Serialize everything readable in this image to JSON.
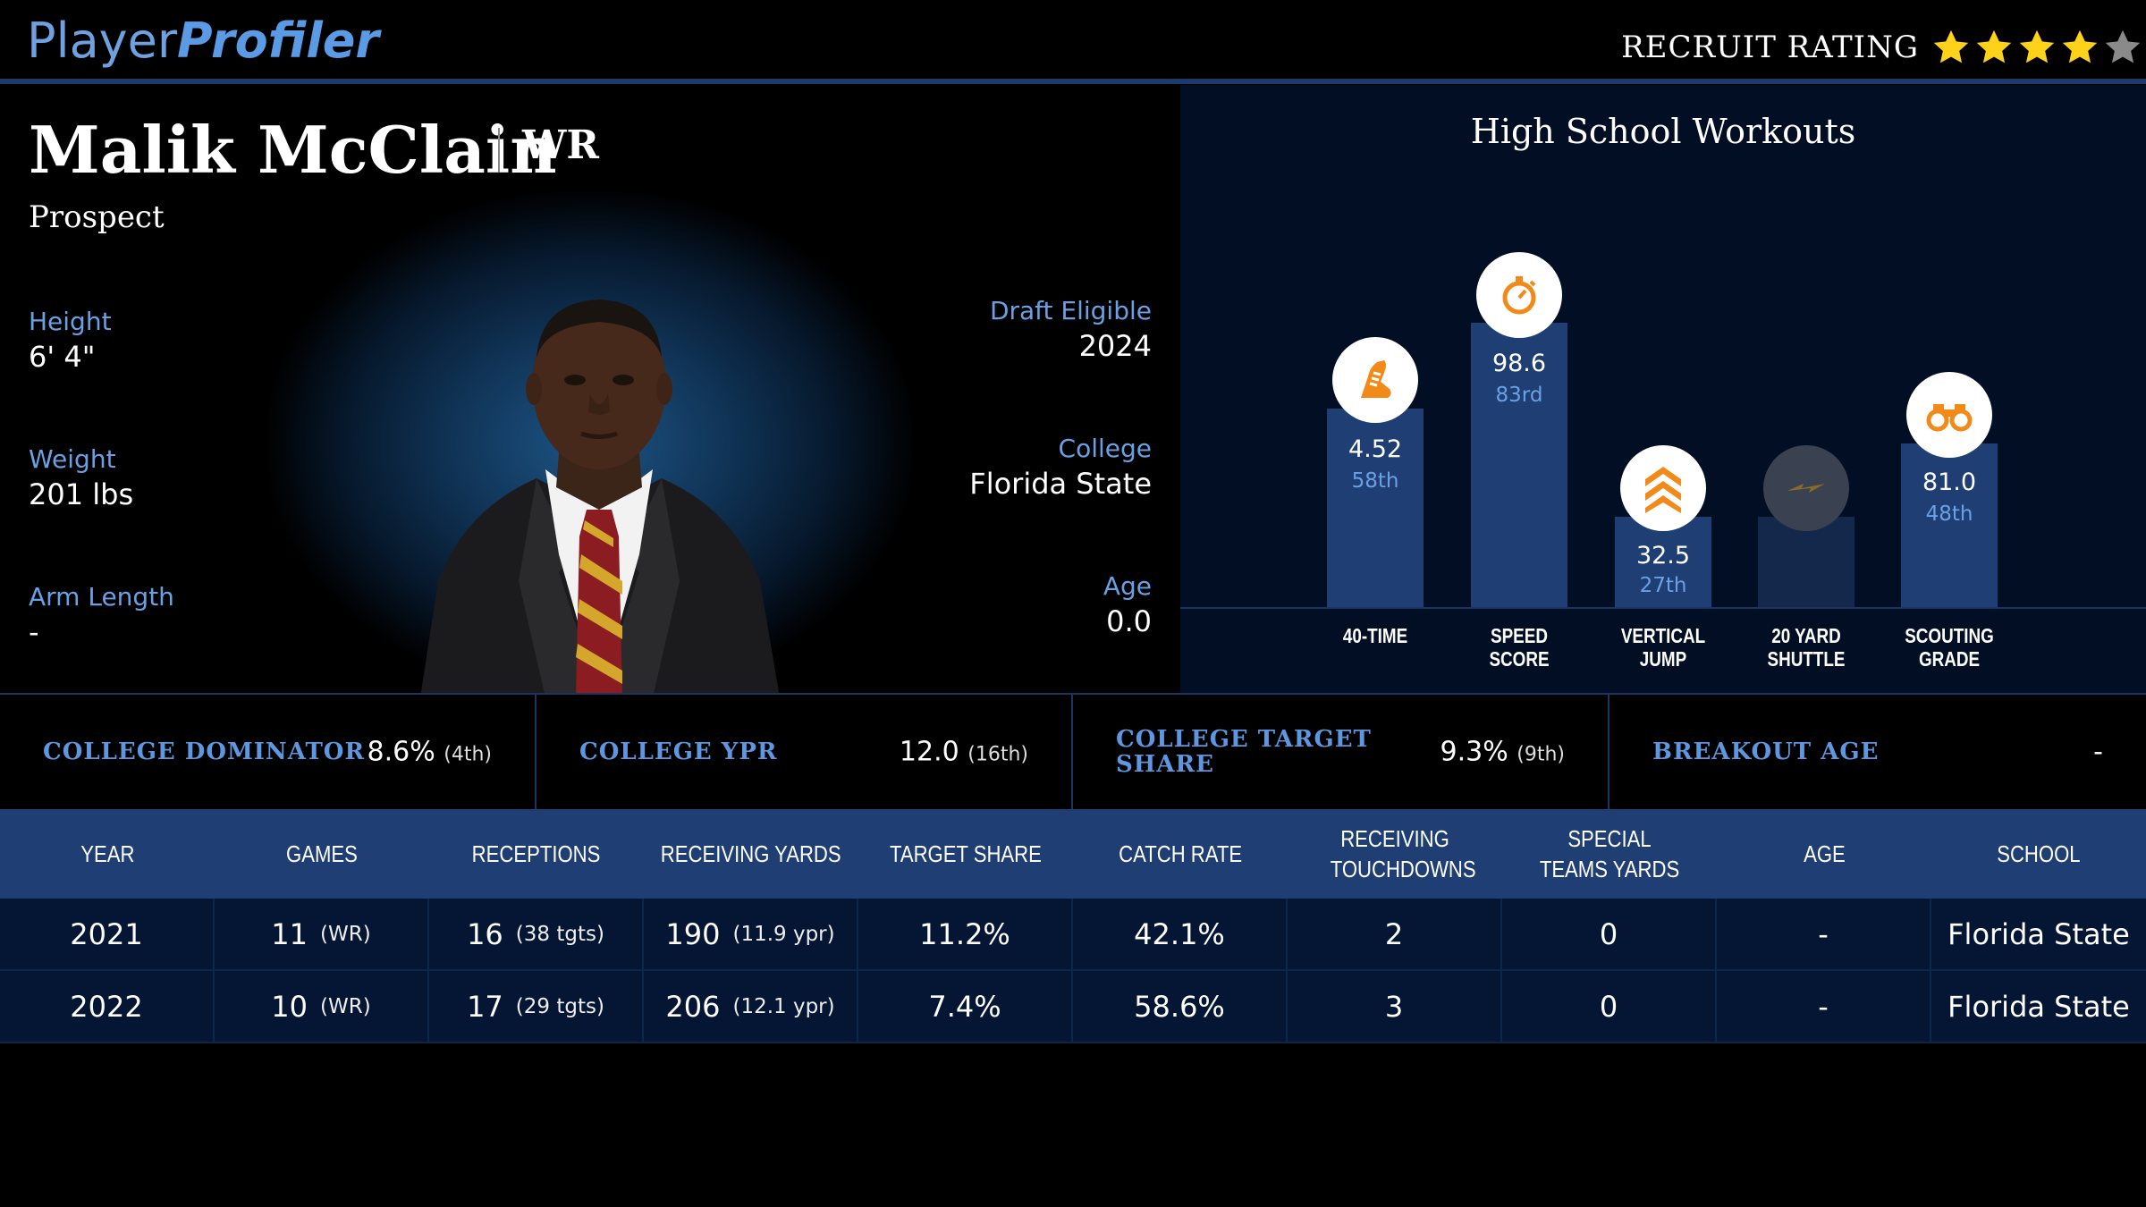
{
  "header": {
    "logo_a": "Player",
    "logo_b": "Profiler",
    "recruit_label": "RECRUIT RATING",
    "recruit_stars": 4,
    "recruit_stars_max": 5
  },
  "profile": {
    "name": "Malik McClain",
    "position": "WR",
    "status": "Prospect",
    "height_label": "Height",
    "height": "6' 4\"",
    "weight_label": "Weight",
    "weight": "201 lbs",
    "arm_label": "Arm Length",
    "arm": "-",
    "draft_label": "Draft Eligible",
    "draft": "2024",
    "college_label": "College",
    "college": "Florida State",
    "age_label": "Age",
    "age": "0.0"
  },
  "workouts": {
    "title": "High School Workouts",
    "items": [
      {
        "value": "4.52",
        "pct": "58th",
        "label1": "40-TIME",
        "label2": "",
        "icon": "shoe-icon",
        "level": 0.58
      },
      {
        "value": "98.6",
        "pct": "83rd",
        "label1": "SPEED",
        "label2": "SCORE",
        "icon": "stopwatch-icon",
        "level": 0.83
      },
      {
        "value": "32.5",
        "pct": "27th",
        "label1": "VERTICAL",
        "label2": "JUMP",
        "icon": "chevrons-up-icon",
        "level": 0.27
      },
      {
        "value": "",
        "pct": "",
        "label1": "20 YARD",
        "label2": "SHUTTLE",
        "icon": "lightning-icon",
        "level": 0.27
      },
      {
        "value": "81.0",
        "pct": "48th",
        "label1": "SCOUTING",
        "label2": "GRADE",
        "icon": "binoculars-icon",
        "level": 0.48
      }
    ]
  },
  "metrics": [
    {
      "label": "COLLEGE DOMINATOR",
      "value": "8.6%",
      "rank": "(4th)"
    },
    {
      "label": "COLLEGE YPR",
      "value": "12.0",
      "rank": "(16th)"
    },
    {
      "label": "COLLEGE TARGET SHARE",
      "value": "9.3%",
      "rank": "(9th)"
    },
    {
      "label": "BREAKOUT AGE",
      "value": "-",
      "rank": ""
    }
  ],
  "table": {
    "headers": [
      "YEAR",
      "GAMES",
      "RECEPTIONS",
      "RECEIVING YARDS",
      "TARGET SHARE",
      "CATCH RATE",
      "RECEIVING TOUCHDOWNS",
      "SPECIAL TEAMS YARDS",
      "AGE",
      "SCHOOL"
    ],
    "rows": [
      {
        "year": "2021",
        "games": "11",
        "games_note": "(WR)",
        "rec": "16",
        "rec_note": "(38 tgts)",
        "yds": "190",
        "yds_note": "(11.9 ypr)",
        "ts": "11.2%",
        "cr": "42.1%",
        "td": "2",
        "st": "0",
        "age": "-",
        "school": "Florida State"
      },
      {
        "year": "2022",
        "games": "10",
        "games_note": "(WR)",
        "rec": "17",
        "rec_note": "(29 tgts)",
        "yds": "206",
        "yds_note": "(12.1 ypr)",
        "ts": "7.4%",
        "cr": "58.6%",
        "td": "3",
        "st": "0",
        "age": "-",
        "school": "Florida State"
      }
    ]
  }
}
